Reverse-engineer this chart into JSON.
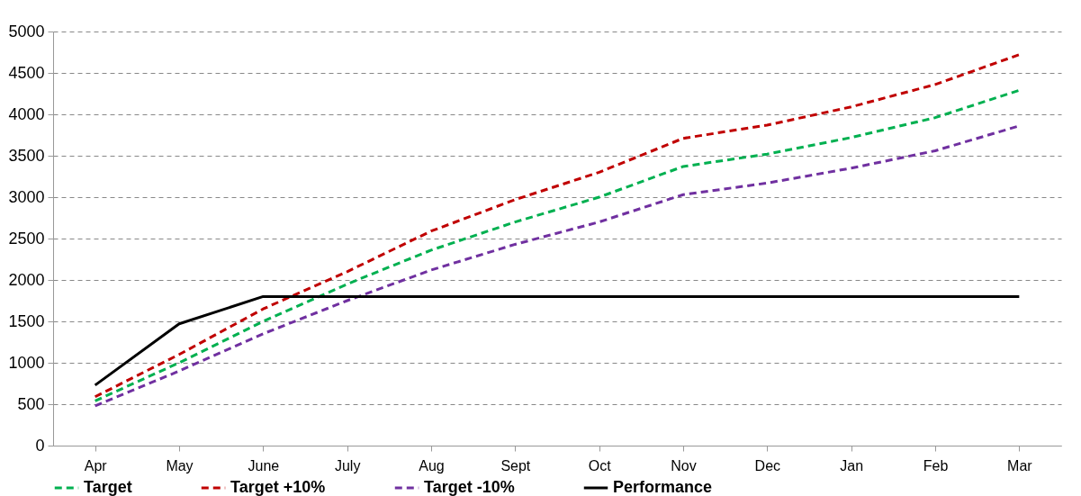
{
  "chart_data": {
    "type": "line",
    "categories": [
      "Apr",
      "May",
      "June",
      "July",
      "Aug",
      "Sept",
      "Oct",
      "Nov",
      "Dec",
      "Jan",
      "Feb",
      "Mar"
    ],
    "series": [
      {
        "name": "Target",
        "color": "#00b050",
        "line_style": "dashed",
        "values": [
          540,
          1000,
          1500,
          1950,
          2360,
          2700,
          3000,
          3370,
          3520,
          3720,
          3960,
          4290
        ]
      },
      {
        "name": "Target +10%",
        "color": "#c00000",
        "line_style": "dashed",
        "values": [
          590,
          1100,
          1650,
          2100,
          2590,
          2970,
          3300,
          3710,
          3870,
          4090,
          4360,
          4720
        ]
      },
      {
        "name": "Target -10%",
        "color": "#7030a0",
        "line_style": "dashed",
        "values": [
          480,
          900,
          1350,
          1750,
          2120,
          2430,
          2700,
          3030,
          3170,
          3350,
          3560,
          3860
        ]
      },
      {
        "name": "Performance",
        "color": "#000000",
        "line_style": "solid",
        "values": [
          730,
          1470,
          1800,
          1800,
          1800,
          1800,
          1800,
          1800,
          1800,
          1800,
          1800,
          1800
        ]
      }
    ],
    "ylim": [
      0,
      5000
    ],
    "yticks": [
      0,
      500,
      1000,
      1500,
      2000,
      2500,
      3000,
      3500,
      4000,
      4500,
      5000
    ],
    "grid": "y",
    "legend": "bottom",
    "marker": "none"
  }
}
